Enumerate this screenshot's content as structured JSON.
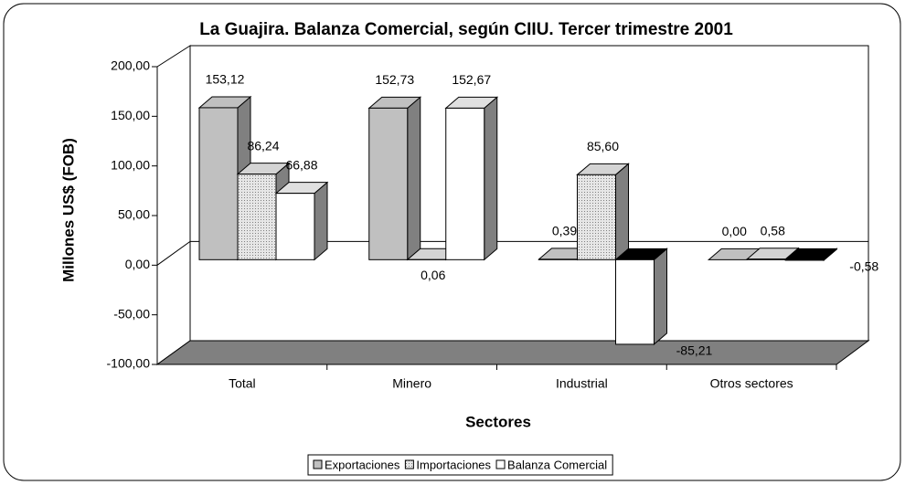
{
  "chart_data": {
    "type": "bar",
    "title": "La Guajira.  Balanza Comercial, según CIIU.  Tercer trimestre 2001",
    "y_label": "Millones US$ (FOB)",
    "x_label": "Sectores",
    "categories": [
      "Total",
      "Minero",
      "Industrial",
      "Otros sectores"
    ],
    "series": [
      {
        "name": "Exportaciones",
        "color": "#c0c0c0",
        "values": [
          153.12,
          152.73,
          0.39,
          0.0
        ],
        "value_labels": [
          "153,12",
          "152,73",
          "0,39",
          "0,00"
        ]
      },
      {
        "name": "Importaciones",
        "color": "#d4d4d4",
        "pattern": "dots",
        "values": [
          86.24,
          0.06,
          85.6,
          0.58
        ],
        "value_labels": [
          "86,24",
          "0,06",
          "85,60",
          "0,58"
        ]
      },
      {
        "name": "Balanza Comercial",
        "color": "#ffffff",
        "values": [
          66.88,
          152.67,
          -85.21,
          -0.58
        ],
        "value_labels": [
          "66,88",
          "152,67",
          "-85,21",
          "-0,58"
        ]
      }
    ],
    "ylim": [
      -100,
      200
    ],
    "yticks": [
      {
        "value": -100,
        "label": "-100,00"
      },
      {
        "value": -50,
        "label": "-50,00"
      },
      {
        "value": 0,
        "label": "0,00"
      },
      {
        "value": 50,
        "label": "50,00"
      },
      {
        "value": 100,
        "label": "100,00"
      },
      {
        "value": 150,
        "label": "150,00"
      },
      {
        "value": 200,
        "label": "200,00"
      }
    ],
    "legend": "bottom"
  }
}
